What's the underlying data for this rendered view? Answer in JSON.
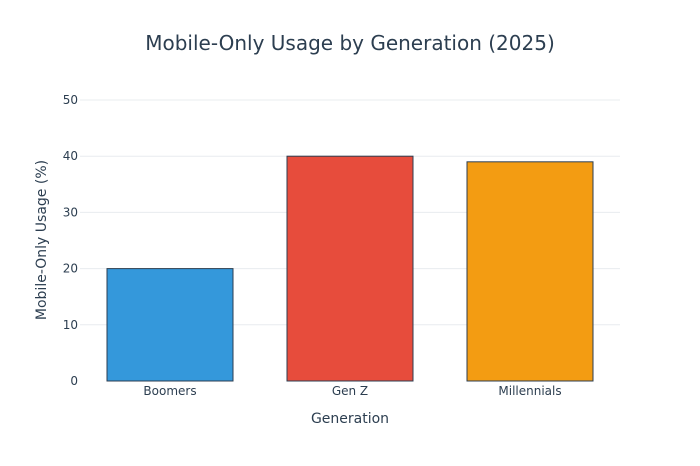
{
  "chart_data": {
    "type": "bar",
    "title": "Mobile-Only Usage by Generation (2025)",
    "xlabel": "Generation",
    "ylabel": "Mobile-Only Usage (%)",
    "categories": [
      "Boomers",
      "Gen Z",
      "Millennials"
    ],
    "values": [
      20,
      40,
      39
    ],
    "ylim": [
      0,
      50
    ],
    "yticks": [
      0,
      10,
      20,
      30,
      40,
      50
    ],
    "grid": true,
    "legend": "none",
    "colors": [
      "#3498db",
      "#e74c3c",
      "#f39c12"
    ],
    "bar_outline_color": "#2c3e50",
    "text_color": "#2c3e50",
    "grid_color": "#e8ecef"
  }
}
